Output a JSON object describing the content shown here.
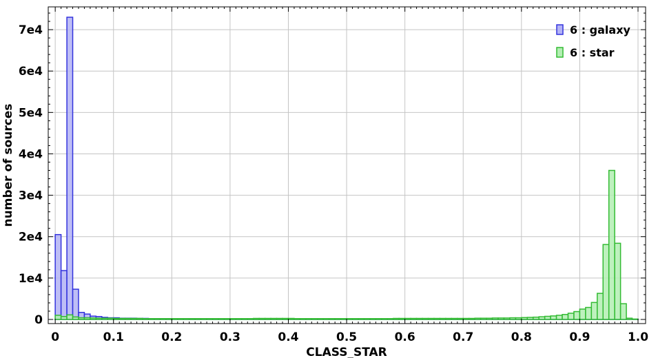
{
  "chart_data": {
    "type": "bar",
    "xlabel": "CLASS_STAR",
    "ylabel": "number of sources",
    "xlim": [
      -0.012,
      1.013
    ],
    "ylim": [
      -1000,
      75500
    ],
    "bin_width": 0.01,
    "x_ticks": [
      "0",
      "0.1",
      "0.2",
      "0.3",
      "0.4",
      "0.5",
      "0.6",
      "0.7",
      "0.8",
      "0.9",
      "1.0"
    ],
    "x_tick_values": [
      0,
      0.1,
      0.2,
      0.3,
      0.4,
      0.5,
      0.6,
      0.7,
      0.8,
      0.9,
      1.0
    ],
    "y_ticks": [
      "0",
      "1e4",
      "2e4",
      "3e4",
      "4e4",
      "5e4",
      "6e4",
      "7e4"
    ],
    "y_tick_values": [
      0,
      10000,
      20000,
      30000,
      40000,
      50000,
      60000,
      70000
    ],
    "grid": true,
    "legend_position": "top-right",
    "series": [
      {
        "name": "6 : galaxy",
        "color": "#3333dd",
        "fill": "#b3b3f5",
        "values": [
          20500,
          11800,
          73000,
          7300,
          1700,
          1300,
          800,
          700,
          500,
          400,
          400,
          300,
          300,
          300,
          250,
          250,
          200,
          200,
          200,
          180,
          170,
          160,
          150,
          150,
          140,
          130,
          130,
          120,
          120,
          110,
          110,
          100,
          100,
          100,
          100,
          100,
          100,
          100,
          90,
          90,
          90,
          90,
          90,
          80,
          80,
          80,
          80,
          80,
          80,
          80,
          80,
          80,
          80,
          80,
          80,
          80,
          80,
          80,
          70,
          70,
          70,
          70,
          70,
          70,
          70,
          70,
          70,
          60,
          60,
          60,
          60,
          60,
          60,
          60,
          60,
          60,
          50,
          50,
          50,
          50,
          50,
          50,
          50,
          50,
          50,
          50,
          40,
          40,
          40,
          40,
          40,
          40,
          40,
          40,
          40,
          30,
          30,
          30,
          30,
          30
        ]
      },
      {
        "name": "6 : star",
        "color": "#33bb33",
        "fill": "#b3eeb3",
        "values": [
          1000,
          700,
          1100,
          600,
          400,
          400,
          350,
          300,
          300,
          300,
          250,
          250,
          250,
          250,
          250,
          200,
          200,
          200,
          200,
          200,
          200,
          200,
          200,
          200,
          200,
          200,
          200,
          200,
          200,
          200,
          200,
          200,
          200,
          200,
          250,
          250,
          250,
          250,
          250,
          250,
          250,
          200,
          200,
          200,
          200,
          200,
          200,
          200,
          200,
          200,
          200,
          200,
          200,
          200,
          200,
          200,
          200,
          200,
          250,
          250,
          250,
          250,
          250,
          250,
          250,
          250,
          250,
          250,
          250,
          250,
          250,
          250,
          300,
          300,
          300,
          350,
          350,
          350,
          400,
          400,
          450,
          500,
          550,
          650,
          750,
          850,
          1000,
          1200,
          1500,
          1900,
          2500,
          2900,
          4100,
          6300,
          18100,
          36000,
          18400,
          3800,
          300,
          100
        ]
      }
    ]
  }
}
